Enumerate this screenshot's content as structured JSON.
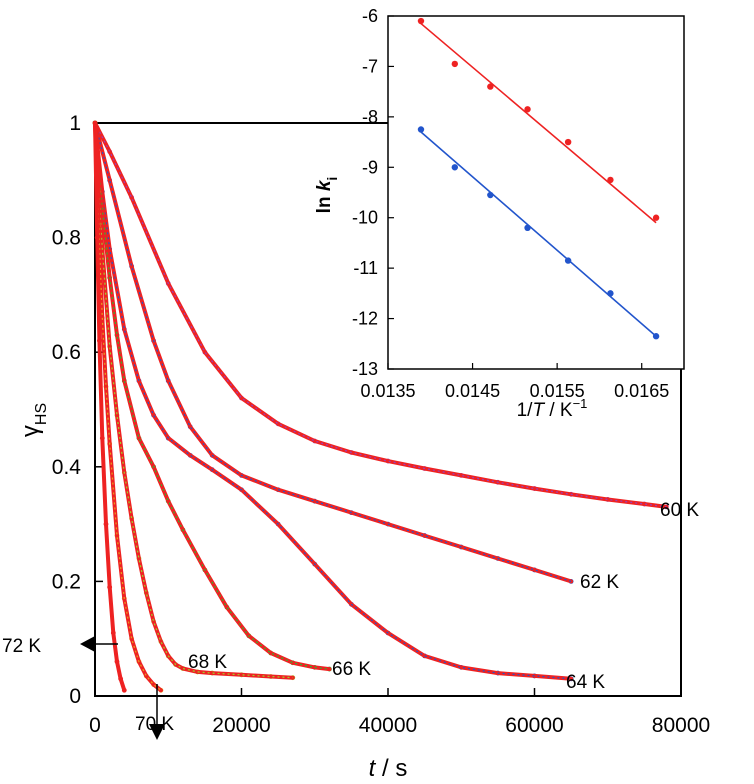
{
  "chart_data": [
    {
      "type": "scatter",
      "xlabel": {
        "italic": "t",
        "rest": " / s"
      },
      "ylabel": {
        "main": "γ",
        "sub": "HS"
      },
      "xlim": [
        0,
        80000
      ],
      "ylim": [
        0,
        1
      ],
      "x_ticks": [
        "0",
        "20000",
        "40000",
        "60000",
        "80000"
      ],
      "y_ticks": [
        "0",
        "0.2",
        "0.4",
        "0.6",
        "0.8",
        "1"
      ],
      "fit_color": "#ee2222",
      "series": [
        {
          "name": "60 K",
          "color": "#9b3fb8",
          "x": [
            0,
            2000,
            5000,
            10000,
            15000,
            20000,
            25000,
            30000,
            35000,
            40000,
            45000,
            50000,
            55000,
            60000,
            65000,
            70000,
            75000,
            78000
          ],
          "y": [
            1.0,
            0.95,
            0.87,
            0.72,
            0.6,
            0.52,
            0.475,
            0.445,
            0.425,
            0.41,
            0.397,
            0.385,
            0.373,
            0.362,
            0.352,
            0.343,
            0.335,
            0.33
          ]
        },
        {
          "name": "62 K",
          "color": "#2255cc",
          "x": [
            0,
            2000,
            5000,
            8000,
            10000,
            13000,
            16000,
            20000,
            25000,
            30000,
            35000,
            40000,
            45000,
            50000,
            55000,
            60000,
            65000
          ],
          "y": [
            1.0,
            0.9,
            0.75,
            0.62,
            0.55,
            0.47,
            0.42,
            0.385,
            0.36,
            0.34,
            0.32,
            0.3,
            0.28,
            0.26,
            0.24,
            0.22,
            0.2
          ]
        },
        {
          "name": "64 K",
          "color": "#2255cc",
          "x": [
            0,
            1000,
            2000,
            4000,
            6000,
            8000,
            10000,
            13000,
            16000,
            20000,
            25000,
            30000,
            35000,
            40000,
            45000,
            50000,
            55000,
            60000,
            65000
          ],
          "y": [
            1.0,
            0.88,
            0.78,
            0.64,
            0.55,
            0.49,
            0.45,
            0.42,
            0.395,
            0.36,
            0.3,
            0.23,
            0.16,
            0.11,
            0.07,
            0.05,
            0.04,
            0.035,
            0.03
          ]
        },
        {
          "name": "66 K",
          "color": "#2db82d",
          "x": [
            0,
            500,
            1000,
            2000,
            3000,
            4000,
            6000,
            8000,
            10000,
            12000,
            15000,
            18000,
            21000,
            24000,
            27000,
            30000,
            32000
          ],
          "y": [
            1.0,
            0.92,
            0.85,
            0.73,
            0.63,
            0.55,
            0.45,
            0.4,
            0.34,
            0.29,
            0.22,
            0.155,
            0.105,
            0.075,
            0.058,
            0.05,
            0.047
          ]
        },
        {
          "name": "68 K",
          "color": "#9ad62a",
          "x": [
            0,
            500,
            1000,
            2000,
            3000,
            4000,
            5000,
            6000,
            7000,
            8000,
            9000,
            10000,
            11000,
            12000,
            14000,
            16000,
            20000,
            24000,
            27000
          ],
          "y": [
            1.0,
            0.88,
            0.78,
            0.61,
            0.49,
            0.39,
            0.31,
            0.24,
            0.18,
            0.13,
            0.095,
            0.07,
            0.055,
            0.048,
            0.042,
            0.04,
            0.037,
            0.034,
            0.032
          ]
        },
        {
          "name": "70 K",
          "color": "#e6a31c",
          "x": [
            0,
            500,
            1000,
            1500,
            2000,
            3000,
            4000,
            5000,
            6000,
            7000,
            8000,
            9000
          ],
          "y": [
            1.0,
            0.82,
            0.66,
            0.54,
            0.44,
            0.28,
            0.17,
            0.1,
            0.06,
            0.035,
            0.02,
            0.01
          ]
        },
        {
          "name": "72 K",
          "color": "#ee2222",
          "x": [
            0,
            300,
            600,
            1000,
            1500,
            2000,
            2500,
            3000,
            3500,
            4000
          ],
          "y": [
            1.0,
            0.8,
            0.62,
            0.45,
            0.3,
            0.19,
            0.11,
            0.06,
            0.03,
            0.01
          ]
        }
      ]
    },
    {
      "type": "scatter",
      "xlabel": {
        "lead": "1/",
        "italic": "T",
        "rest": " / K",
        "sup": "−1"
      },
      "ylabel": {
        "lead": "ln ",
        "italic": "k",
        "sub": "i"
      },
      "xlim": [
        0.0135,
        0.017
      ],
      "ylim": [
        -13,
        -6
      ],
      "x_ticks": [
        "0.0135",
        "0.0145",
        "0.0155",
        "0.0165"
      ],
      "y_ticks": [
        "-6",
        "-7",
        "-8",
        "-9",
        "-10",
        "-11",
        "-12",
        "-13"
      ],
      "series": [
        {
          "color": "#ee2222",
          "x": [
            0.01389,
            0.01429,
            0.01471,
            0.01515,
            0.01563,
            0.01613,
            0.01667
          ],
          "y": [
            -6.1,
            -6.95,
            -7.4,
            -7.85,
            -8.5,
            -9.25,
            -10.0
          ],
          "fit": [
            [
              0.01389,
              -6.15
            ],
            [
              0.01667,
              -10.1
            ]
          ]
        },
        {
          "color": "#2255cc",
          "x": [
            0.01389,
            0.01429,
            0.01471,
            0.01515,
            0.01563,
            0.01613,
            0.01667
          ],
          "y": [
            -8.25,
            -9.0,
            -9.55,
            -10.2,
            -10.85,
            -11.5,
            -12.35
          ],
          "fit": [
            [
              0.01389,
              -8.3
            ],
            [
              0.01667,
              -12.35
            ]
          ]
        }
      ]
    }
  ]
}
